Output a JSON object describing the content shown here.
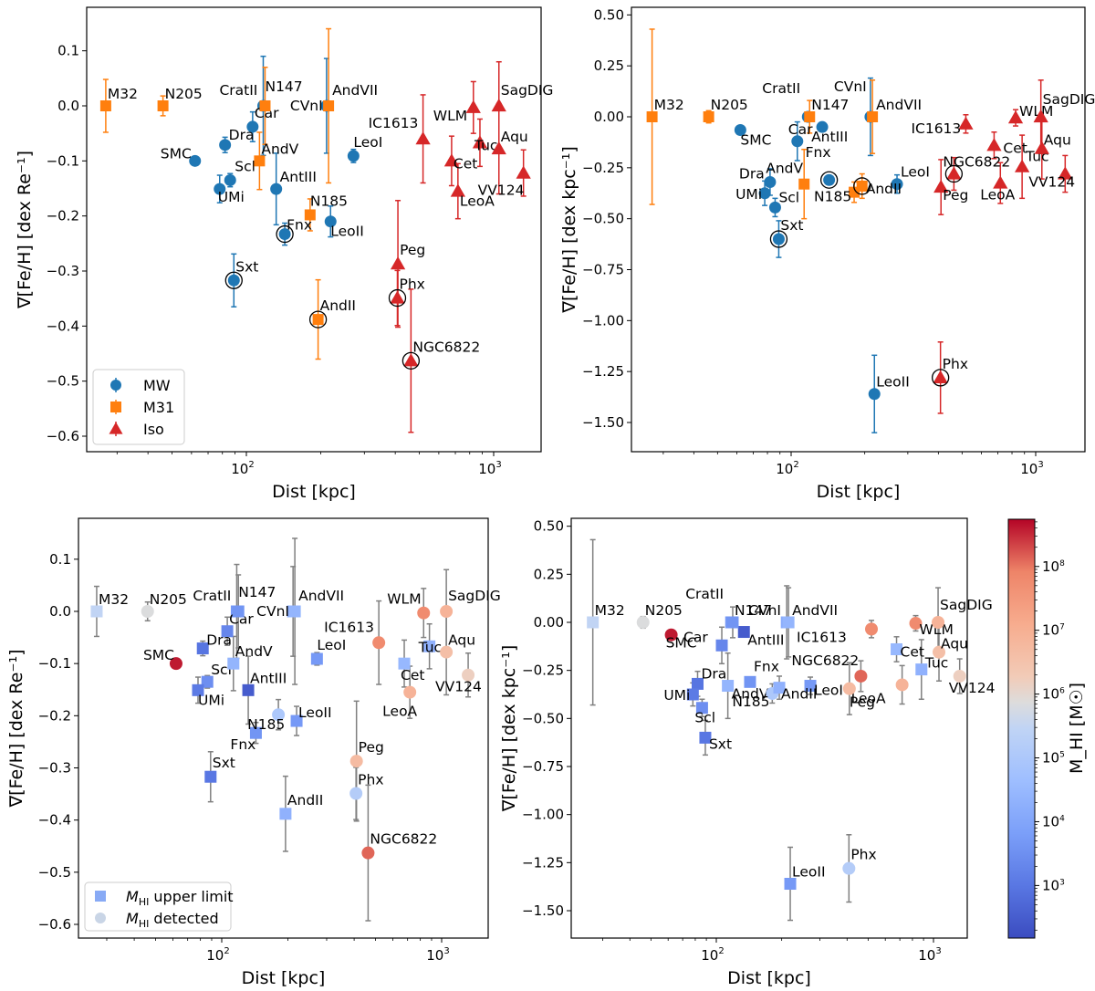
{
  "figure": {
    "xlabel": "Dist [kpc]",
    "ylabel_re": "∇[Fe/H] [dex Re⁻¹]",
    "ylabel_kpc": "∇[Fe/H] [dex kpc⁻¹]",
    "colorbar_label": "M_HI [M☉]"
  },
  "chart_data": [
    {
      "id": "top-left",
      "type": "scatter",
      "title": "",
      "xlabel": "Dist [kpc]",
      "ylabel": "∇[Fe/H] [dex Re^-1]",
      "xscale": "log",
      "xlim": [
        22,
        1600
      ],
      "ylim": [
        -0.63,
        0.17
      ],
      "xticks": [
        "10^2",
        "10^3"
      ],
      "yticks": [
        0.1,
        0.0,
        -0.1,
        -0.2,
        -0.3,
        -0.4,
        -0.5,
        -0.6
      ],
      "legend": {
        "location": "lower-left",
        "entries": [
          "MW",
          "M31",
          "Iso"
        ]
      },
      "series": [
        {
          "name": "MW",
          "color": "#1f77b4",
          "marker": "circle",
          "points": [
            {
              "label": "CratII",
              "x": 117,
              "y": 0.0,
              "err": 0.09
            },
            {
              "label": "Car",
              "x": 106,
              "y": -0.038,
              "err": 0.027
            },
            {
              "label": "Dra",
              "x": 82,
              "y": -0.071,
              "err": 0.014
            },
            {
              "label": "SMC",
              "x": 62,
              "y": -0.1,
              "err": 0.0
            },
            {
              "label": "Scl",
              "x": 86,
              "y": -0.135,
              "err": 0.012
            },
            {
              "label": "UMi",
              "x": 78,
              "y": -0.151,
              "err": 0.025
            },
            {
              "label": "AntIII",
              "x": 132,
              "y": -0.151,
              "err": 0.065
            },
            {
              "label": "CVnI",
              "x": 211,
              "y": 0.0,
              "err": 0.086
            },
            {
              "label": "LeoI",
              "x": 271,
              "y": -0.091,
              "err": 0.012
            },
            {
              "label": "LeoII",
              "x": 219,
              "y": -0.21,
              "err": 0.028
            },
            {
              "label": "Fnx",
              "x": 143,
              "y": -0.233,
              "err": 0.02,
              "circled": true
            },
            {
              "label": "Sxt",
              "x": 89,
              "y": -0.317,
              "err": 0.048,
              "circled": true
            }
          ]
        },
        {
          "name": "M31",
          "color": "#ff7f0e",
          "marker": "square",
          "points": [
            {
              "label": "M32",
              "x": 27,
              "y": 0.0,
              "err": 0.048
            },
            {
              "label": "N205",
              "x": 46,
              "y": 0.0,
              "err": 0.018
            },
            {
              "label": "N147",
              "x": 119,
              "y": 0.0,
              "err": 0.07
            },
            {
              "label": "AndV",
              "x": 113,
              "y": -0.1,
              "err": 0.052
            },
            {
              "label": "AndVII",
              "x": 215,
              "y": 0.0,
              "err": 0.14
            },
            {
              "label": "N185",
              "x": 181,
              "y": -0.198,
              "err": 0.029
            },
            {
              "label": "AndII",
              "x": 195,
              "y": -0.388,
              "err": 0.072,
              "circled": true
            }
          ]
        },
        {
          "name": "Iso",
          "color": "#d62728",
          "marker": "triangle",
          "points": [
            {
              "label": "IC1613",
              "x": 518,
              "y": -0.06,
              "err": 0.08
            },
            {
              "label": "Cet",
              "x": 676,
              "y": -0.1,
              "err": 0.045
            },
            {
              "label": "LeoA",
              "x": 717,
              "y": -0.155,
              "err": 0.05
            },
            {
              "label": "WLM",
              "x": 828,
              "y": -0.003,
              "err": 0.047
            },
            {
              "label": "Tuc",
              "x": 880,
              "y": -0.067,
              "err": 0.043
            },
            {
              "label": "SagDIG",
              "x": 1050,
              "y": 0.0,
              "err": 0.08
            },
            {
              "label": "Aqu",
              "x": 1050,
              "y": -0.078,
              "err": 0.082
            },
            {
              "label": "VV124",
              "x": 1320,
              "y": -0.122,
              "err": 0.042
            },
            {
              "label": "Peg",
              "x": 410,
              "y": -0.287,
              "err": 0.115
            },
            {
              "label": "Phx",
              "x": 408,
              "y": -0.349,
              "err": 0.05,
              "circled": true
            },
            {
              "label": "NGC6822",
              "x": 463,
              "y": -0.463,
              "err": 0.13,
              "circled": true
            }
          ]
        }
      ]
    },
    {
      "id": "top-right",
      "type": "scatter",
      "xlabel": "Dist [kpc]",
      "ylabel": "∇[Fe/H] [dex kpc^-1]",
      "xscale": "log",
      "xlim": [
        22,
        1450
      ],
      "ylim": [
        -1.65,
        0.55
      ],
      "xticks": [
        "10^2",
        "10^3"
      ],
      "yticks": [
        0.5,
        0.25,
        0.0,
        -0.25,
        -0.5,
        -0.75,
        -1.0,
        -1.25,
        -1.5
      ],
      "series": [
        {
          "name": "MW",
          "color": "#1f77b4",
          "marker": "circle",
          "points": [
            {
              "label": "CratII",
              "x": 117,
              "y": 0.0,
              "err": 0.0
            },
            {
              "label": "SMC",
              "x": 62,
              "y": -0.065,
              "err": 0.0
            },
            {
              "label": "AntIII",
              "x": 134,
              "y": -0.05,
              "err": 0.0
            },
            {
              "label": "Car",
              "x": 106,
              "y": -0.12,
              "err": 0.095
            },
            {
              "label": "CVnI",
              "x": 211,
              "y": 0.0,
              "err": 0.19
            },
            {
              "label": "Dra",
              "x": 82,
              "y": -0.32,
              "err": 0.065
            },
            {
              "label": "UMi",
              "x": 78,
              "y": -0.375,
              "err": 0.06
            },
            {
              "label": "Scl",
              "x": 86,
              "y": -0.445,
              "err": 0.045
            },
            {
              "label": "Sxt",
              "x": 89,
              "y": -0.6,
              "err": 0.09,
              "circled": true
            },
            {
              "label": "Fnx",
              "x": 143,
              "y": -0.31,
              "err": 0.02,
              "circled": true
            },
            {
              "label": "LeoI",
              "x": 271,
              "y": -0.33,
              "err": 0.045
            },
            {
              "label": "LeoII",
              "x": 219,
              "y": -1.36,
              "err": 0.19
            }
          ]
        },
        {
          "name": "M31",
          "color": "#ff7f0e",
          "marker": "square",
          "points": [
            {
              "label": "M32",
              "x": 27,
              "y": 0.0,
              "err": 0.43
            },
            {
              "label": "N205",
              "x": 46,
              "y": 0.0,
              "err": 0.03
            },
            {
              "label": "N147",
              "x": 119,
              "y": 0.0,
              "err": 0.08
            },
            {
              "label": "AndVII",
              "x": 215,
              "y": 0.0,
              "err": 0.18
            },
            {
              "label": "AndV",
              "x": 113,
              "y": -0.33,
              "err": 0.17
            },
            {
              "label": "N185",
              "x": 181,
              "y": -0.37,
              "err": 0.05
            },
            {
              "label": "AndII",
              "x": 195,
              "y": -0.34,
              "err": 0.06,
              "circled": true
            }
          ]
        },
        {
          "name": "Iso",
          "color": "#d62728",
          "marker": "triangle",
          "points": [
            {
              "label": "IC1613",
              "x": 518,
              "y": -0.035,
              "err": 0.045
            },
            {
              "label": "WLM",
              "x": 828,
              "y": -0.005,
              "err": 0.04
            },
            {
              "label": "Cet",
              "x": 676,
              "y": -0.14,
              "err": 0.065
            },
            {
              "label": "LeoA",
              "x": 717,
              "y": -0.325,
              "err": 0.1
            },
            {
              "label": "Tuc",
              "x": 880,
              "y": -0.245,
              "err": 0.155
            },
            {
              "label": "SagDIG",
              "x": 1050,
              "y": 0.0,
              "err": 0.18
            },
            {
              "label": "Aqu",
              "x": 1060,
              "y": -0.155,
              "err": 0.15
            },
            {
              "label": "VV124",
              "x": 1320,
              "y": -0.28,
              "err": 0.09
            },
            {
              "label": "Peg",
              "x": 410,
              "y": -0.345,
              "err": 0.135
            },
            {
              "label": "NGC6822",
              "x": 463,
              "y": -0.28,
              "err": 0.08,
              "circled": true
            },
            {
              "label": "Phx",
              "x": 408,
              "y": -1.28,
              "err": 0.175,
              "circled": true
            }
          ]
        }
      ]
    },
    {
      "id": "bottom-left",
      "type": "scatter",
      "xlabel": "Dist [kpc]",
      "ylabel": "∇[Fe/H] [dex Re^-1]",
      "xscale": "log",
      "xlim": [
        22,
        1600
      ],
      "ylim": [
        -0.63,
        0.17
      ],
      "color_by": "log10 M_HI",
      "legend": {
        "location": "lower-left",
        "entries": [
          "M_HI upper limit",
          "M_HI detected"
        ]
      }
    },
    {
      "id": "bottom-right",
      "type": "scatter",
      "xlabel": "Dist [kpc]",
      "ylabel": "∇[Fe/H] [dex kpc^-1]",
      "xscale": "log",
      "xlim": [
        22,
        1450
      ],
      "ylim": [
        -1.65,
        0.55
      ],
      "color_by": "log10 M_HI",
      "colorbar": {
        "label": "M_HI [M_sun]",
        "scale": "log",
        "range": [
          150,
          550000000
        ],
        "ticks": [
          "10^3",
          "10^4",
          "10^5",
          "10^6",
          "10^7",
          "10^8"
        ],
        "cmap": "coolwarm"
      }
    }
  ],
  "hi_mass": {
    "M32": {
      "m": 300000,
      "detected": false
    },
    "N205": {
      "m": 700000,
      "detected": true
    },
    "CratII": {
      "m": 5000,
      "detected": false
    },
    "N147": {
      "m": 4000,
      "detected": false
    },
    "Car": {
      "m": 2000,
      "detected": false
    },
    "Dra": {
      "m": 900,
      "detected": false
    },
    "SMC": {
      "m": 400000000,
      "detected": true
    },
    "Scl": {
      "m": 3000,
      "detected": false
    },
    "UMi": {
      "m": 1200,
      "detected": false
    },
    "AndV": {
      "m": 25000,
      "detected": false
    },
    "AntIII": {
      "m": 300,
      "detected": false
    },
    "CVnI": {
      "m": 15000,
      "detected": false
    },
    "AndVII": {
      "m": 25000,
      "detected": false
    },
    "LeoI": {
      "m": 5000,
      "detected": false
    },
    "N185": {
      "m": 100000,
      "detected": true
    },
    "LeoII": {
      "m": 5000,
      "detected": false
    },
    "Fnx": {
      "m": 4000,
      "detected": false
    },
    "Sxt": {
      "m": 1000,
      "detected": false
    },
    "AndII": {
      "m": 20000,
      "detected": false
    },
    "Peg": {
      "m": 5000000,
      "detected": true
    },
    "Phx": {
      "m": 150000,
      "detected": true
    },
    "NGC6822": {
      "m": 130000000,
      "detected": true
    },
    "IC1613": {
      "m": 60000000,
      "detected": true
    },
    "Cet": {
      "m": 30000,
      "detected": false
    },
    "LeoA": {
      "m": 8000000,
      "detected": true
    },
    "WLM": {
      "m": 60000000,
      "detected": true
    },
    "Tuc": {
      "m": 20000,
      "detected": false
    },
    "SagDIG": {
      "m": 8000000,
      "detected": true
    },
    "Aqu": {
      "m": 4000000,
      "detected": true
    },
    "VV124": {
      "m": 1500000,
      "detected": true
    }
  },
  "legend_text": {
    "mw": "MW",
    "m31": "M31",
    "iso": "Iso",
    "upper": "upper limit",
    "detected": "detected",
    "mhi": "M",
    "hi_sub": "HI"
  },
  "tick_text": {
    "x": [
      {
        "base": "10",
        "exp": "2",
        "v": 100
      },
      {
        "base": "10",
        "exp": "3",
        "v": 1000
      }
    ],
    "cb": [
      {
        "exp": "3",
        "v": 1000
      },
      {
        "exp": "4",
        "v": 10000
      },
      {
        "exp": "5",
        "v": 100000
      },
      {
        "exp": "6",
        "v": 1000000
      },
      {
        "exp": "7",
        "v": 10000000
      },
      {
        "exp": "8",
        "v": 100000000
      }
    ]
  }
}
